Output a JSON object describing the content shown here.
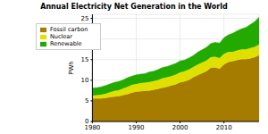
{
  "chart_data": {
    "type": "area",
    "title": "Annual Electricity Net Generation in the World",
    "ylabel": "PWh",
    "stacked": true,
    "grid": true,
    "legend": "upper left",
    "x": [
      1980,
      1981,
      1982,
      1983,
      1984,
      1985,
      1986,
      1987,
      1988,
      1989,
      1990,
      1991,
      1992,
      1993,
      1994,
      1995,
      1996,
      1997,
      1998,
      1999,
      2000,
      2001,
      2002,
      2003,
      2004,
      2005,
      2006,
      2007,
      2008,
      2009,
      2010,
      2011,
      2012,
      2013,
      2014,
      2015,
      2016,
      2017,
      2018
    ],
    "xlim": [
      1980,
      2018
    ],
    "xticks": [
      1980,
      1990,
      2000,
      2010
    ],
    "ylim": [
      0,
      26
    ],
    "yticks": [
      0,
      5,
      10,
      15,
      20,
      25
    ],
    "series": [
      {
        "name": "Fossil carbon",
        "color": "#a67c00",
        "values": [
          5.6,
          5.6,
          5.6,
          5.7,
          5.9,
          6.0,
          6.1,
          6.4,
          6.6,
          7.0,
          7.2,
          7.3,
          7.4,
          7.5,
          7.7,
          7.9,
          8.2,
          8.4,
          8.7,
          9.0,
          9.5,
          9.7,
          10.1,
          10.7,
          11.2,
          11.7,
          12.2,
          13.0,
          13.1,
          12.8,
          13.8,
          14.4,
          14.6,
          14.9,
          15.1,
          15.1,
          15.3,
          15.6,
          16.1
        ]
      },
      {
        "name": "Nuclear",
        "color": "#e0e000",
        "values": [
          0.7,
          0.8,
          0.9,
          1.0,
          1.2,
          1.4,
          1.5,
          1.6,
          1.8,
          1.9,
          1.9,
          2.0,
          2.0,
          2.1,
          2.1,
          2.2,
          2.3,
          2.3,
          2.3,
          2.4,
          2.4,
          2.5,
          2.5,
          2.5,
          2.6,
          2.6,
          2.6,
          2.6,
          2.6,
          2.6,
          2.6,
          2.5,
          2.3,
          2.3,
          2.4,
          2.4,
          2.5,
          2.5,
          2.6
        ]
      },
      {
        "name": "Renewable",
        "color": "#22aa00",
        "values": [
          1.8,
          1.8,
          1.9,
          2.0,
          2.0,
          2.1,
          2.1,
          2.1,
          2.2,
          2.1,
          2.2,
          2.2,
          2.2,
          2.4,
          2.4,
          2.5,
          2.6,
          2.6,
          2.7,
          2.7,
          2.8,
          2.7,
          2.8,
          2.8,
          3.0,
          3.1,
          3.2,
          3.3,
          3.5,
          3.6,
          3.9,
          4.1,
          4.5,
          4.8,
          5.0,
          5.3,
          5.7,
          6.1,
          6.6
        ]
      }
    ]
  }
}
